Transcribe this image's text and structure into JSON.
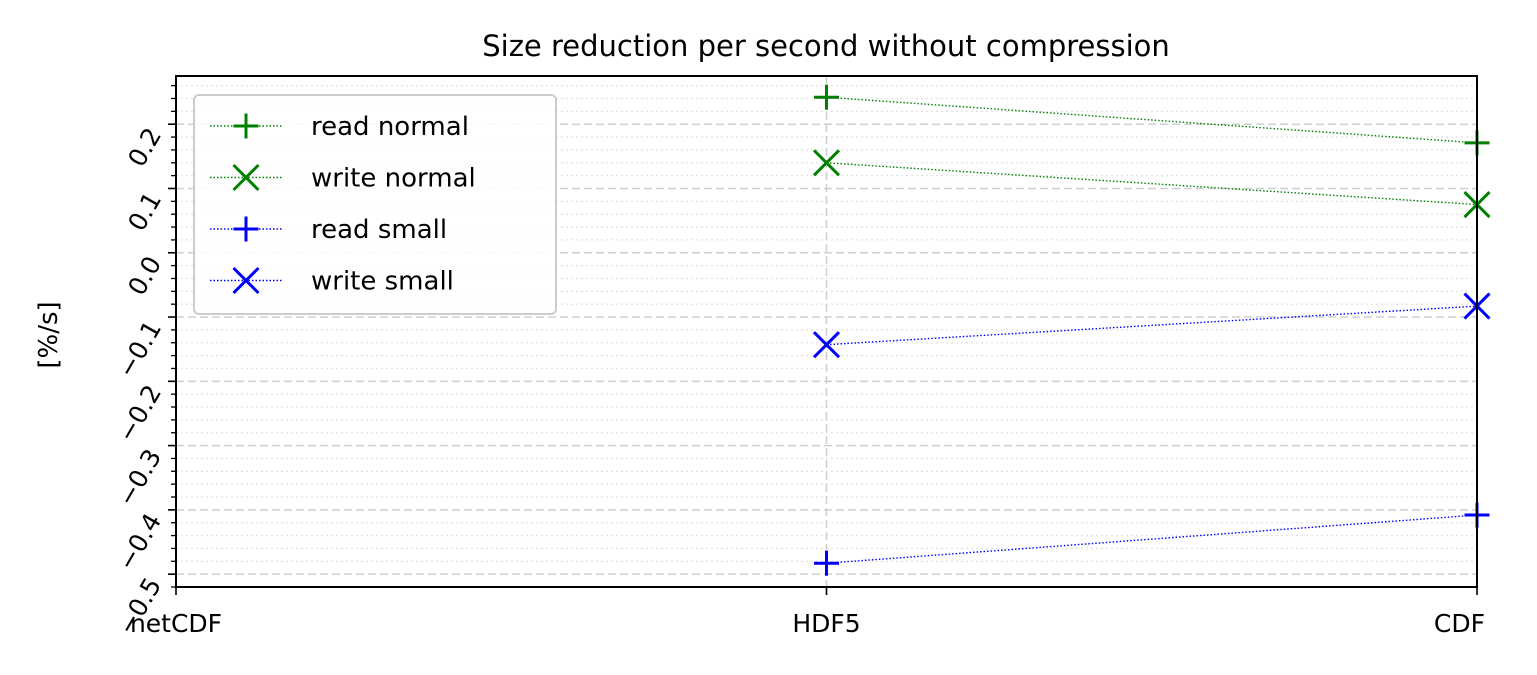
{
  "chart_data": {
    "type": "line",
    "title": "Size reduction per second without compression",
    "xlabel": "",
    "ylabel": "[%/s]",
    "categories": [
      "netCDF",
      "HDF5",
      "CDF"
    ],
    "ylim": [
      -0.52,
      0.275
    ],
    "yticks": [
      0.2,
      0.1,
      0.0,
      -0.1,
      -0.2,
      -0.3,
      -0.4,
      -0.5
    ],
    "ytick_labels": [
      "0.2",
      "0.1",
      "0.0",
      "−0.1",
      "−0.2",
      "−0.3",
      "−0.4",
      "−0.5"
    ],
    "grid": true,
    "legend_position": "top-left",
    "series": [
      {
        "name": "read normal",
        "color": "#008000",
        "marker": "plus",
        "values": [
          null,
          0.242,
          0.171
        ]
      },
      {
        "name": "write normal",
        "color": "#008000",
        "marker": "x",
        "values": [
          null,
          0.14,
          0.075
        ]
      },
      {
        "name": "read small",
        "color": "#0000ff",
        "marker": "plus",
        "values": [
          null,
          -0.483,
          -0.408
        ]
      },
      {
        "name": "write small",
        "color": "#0000ff",
        "marker": "x",
        "values": [
          null,
          -0.143,
          -0.083
        ]
      }
    ]
  }
}
